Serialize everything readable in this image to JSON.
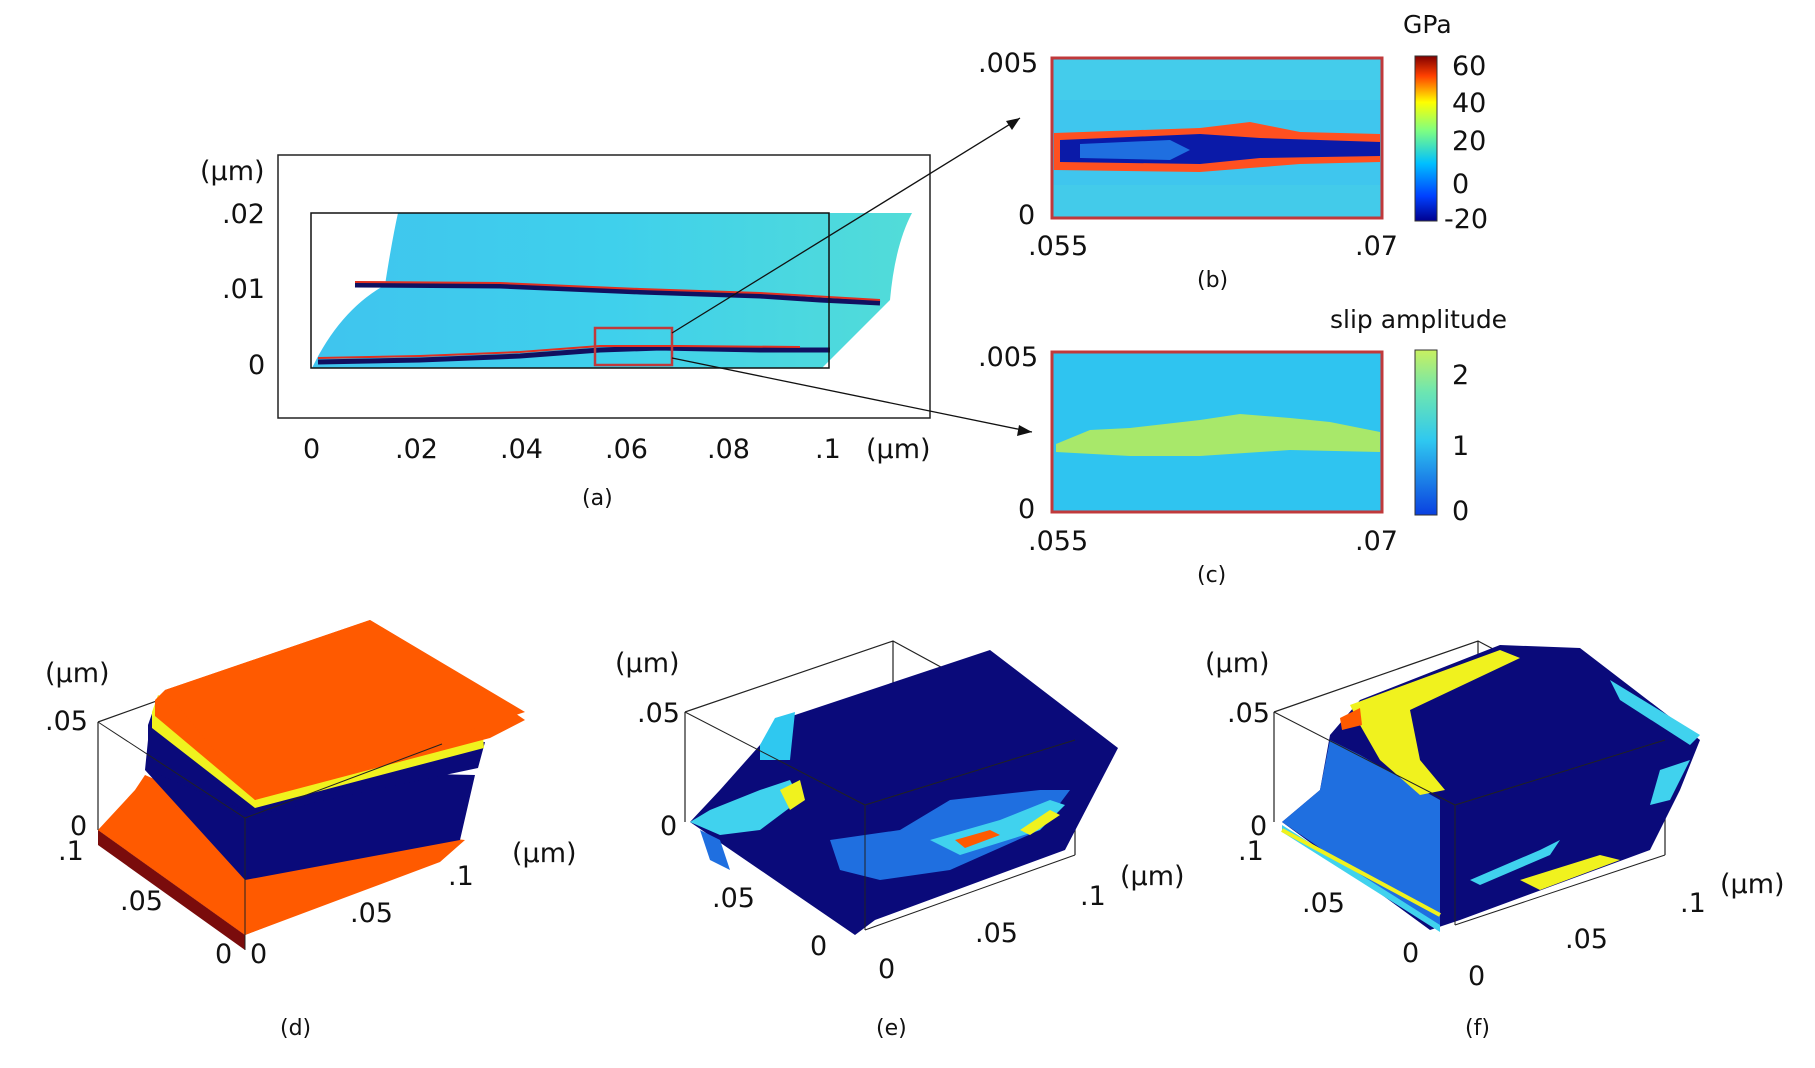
{
  "panels": {
    "a": {
      "caption": "(a)",
      "unit_y": "(μm)",
      "unit_x": "(μm)",
      "y_ticks": [
        ".02",
        ".01",
        "0"
      ],
      "x_ticks": [
        "0",
        ".02",
        ".04",
        ".06",
        ".08",
        ".1"
      ]
    },
    "b": {
      "caption": "(b)",
      "y_ticks": [
        ".005",
        "0"
      ],
      "x_ticks": [
        ".055",
        ".07"
      ],
      "colorbar_title": "GPa",
      "colorbar_ticks": [
        "60",
        "40",
        "20",
        "0",
        "-20"
      ]
    },
    "c": {
      "caption": "(c)",
      "y_ticks": [
        ".005",
        "0"
      ],
      "x_ticks": [
        ".055",
        ".07"
      ],
      "colorbar_title": "slip amplitude",
      "colorbar_ticks": [
        "2",
        "1",
        "0"
      ]
    },
    "d": {
      "caption": "(d)",
      "unit_z": "(μm)",
      "unit_x": "(μm)",
      "z_ticks": [
        ".05",
        "0"
      ],
      "y_ticks": [
        ".1",
        ".05",
        "0"
      ],
      "x_ticks": [
        "0",
        ".05",
        ".1"
      ]
    },
    "e": {
      "caption": "(e)",
      "unit_z": "(μm)",
      "unit_x": "(μm)",
      "z_ticks": [
        ".05",
        "0"
      ],
      "y_ticks": [
        ".05",
        "0"
      ],
      "x_ticks": [
        "0",
        ".05",
        ".1"
      ]
    },
    "f": {
      "caption": "(f)",
      "unit_z": "(μm)",
      "unit_x": "(μm)",
      "z_ticks": [
        ".05",
        "0"
      ],
      "y_ticks": [
        ".1",
        ".05",
        "0"
      ],
      "x_ticks": [
        "0",
        ".05",
        ".1"
      ]
    }
  },
  "colors": {
    "jet_deep_blue": "#0a0a7a",
    "jet_blue": "#1f6fe0",
    "jet_cyan": "#2fc8f0",
    "jet_light": "#40d2ee",
    "jet_yellow": "#f0f21e",
    "jet_orange": "#ff5a00",
    "jet_red": "#b31212",
    "jet_dark_red": "#7a0c0c",
    "highlight_box": "#c0393b",
    "slip_green": "#a8e86a"
  }
}
